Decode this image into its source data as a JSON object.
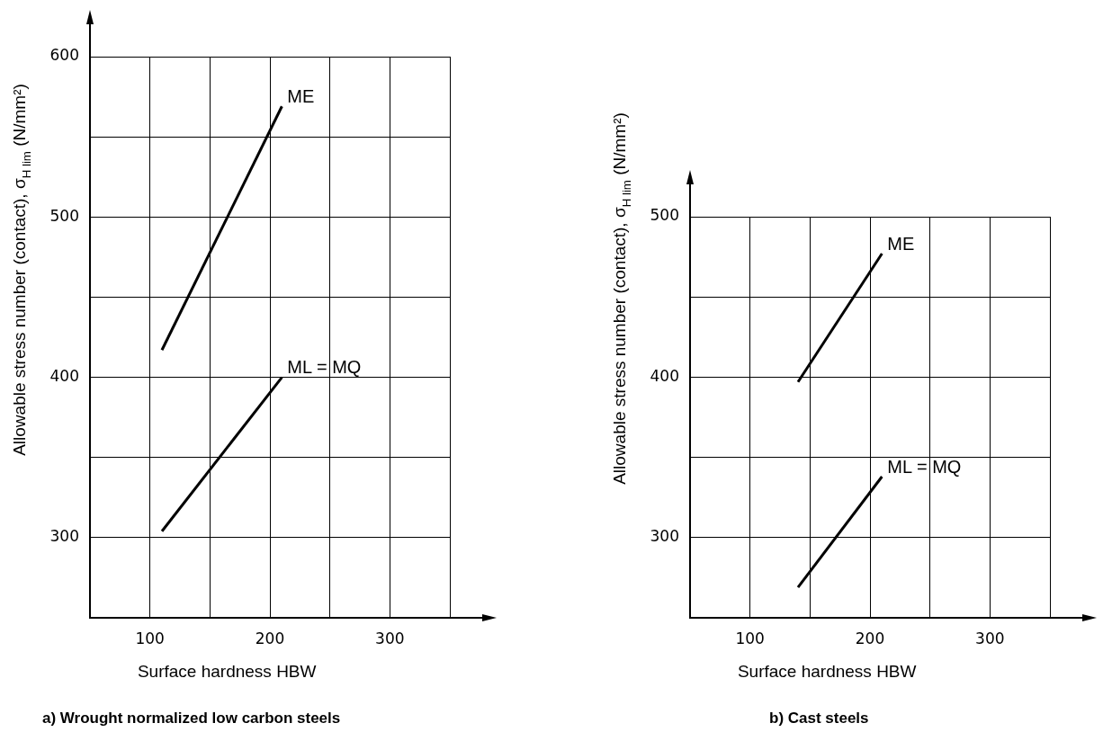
{
  "chart_data": [
    {
      "type": "line",
      "title": "a) Wrought normalized low carbon steels",
      "xlabel": "Surface hardness HBW",
      "ylabel": "Allowable stress number (contact), σ$_{H lim}$ (N/mm²)",
      "series": [
        {
          "name": "ME",
          "color": "#000000",
          "x": [
            110,
            210
          ],
          "values": [
            417,
            569
          ]
        },
        {
          "name": "ML = MQ",
          "color": "#000000",
          "x": [
            110,
            210
          ],
          "values": [
            304,
            400
          ]
        }
      ],
      "xlim": [
        50,
        350
      ],
      "ylim": [
        250,
        600
      ],
      "xticks": [
        100,
        {
          "value": 150,
          "label": null
        },
        200,
        {
          "value": 250,
          "label": null
        },
        300,
        {
          "value": 350,
          "label": null
        }
      ],
      "yticks": [
        300,
        {
          "value": 350,
          "label": null
        },
        400,
        {
          "value": 450,
          "label": null
        },
        500,
        {
          "value": 550,
          "label": null
        },
        600
      ],
      "grid": true,
      "legend": false,
      "marker": "none",
      "line_style": "solid"
    },
    {
      "type": "line",
      "title": "b) Cast steels",
      "xlabel": "Surface hardness HBW",
      "ylabel": "Allowable stress number (contact), σ$_{H lim}$ (N/mm²)",
      "series": [
        {
          "name": "ME",
          "color": "#000000",
          "x": [
            140,
            210
          ],
          "values": [
            397,
            477
          ]
        },
        {
          "name": "ML = MQ",
          "color": "#000000",
          "x": [
            140,
            210
          ],
          "values": [
            269,
            338
          ]
        }
      ],
      "xlim": [
        50,
        350
      ],
      "ylim": [
        250,
        500
      ],
      "xticks": [
        100,
        {
          "value": 150,
          "label": null
        },
        200,
        {
          "value": 250,
          "label": null
        },
        300,
        {
          "value": 350,
          "label": null
        }
      ],
      "yticks": [
        300,
        {
          "value": 350,
          "label": null
        },
        400,
        {
          "value": 450,
          "label": null
        },
        500
      ],
      "grid": true,
      "legend": false,
      "marker": "none",
      "line_style": "solid"
    }
  ]
}
